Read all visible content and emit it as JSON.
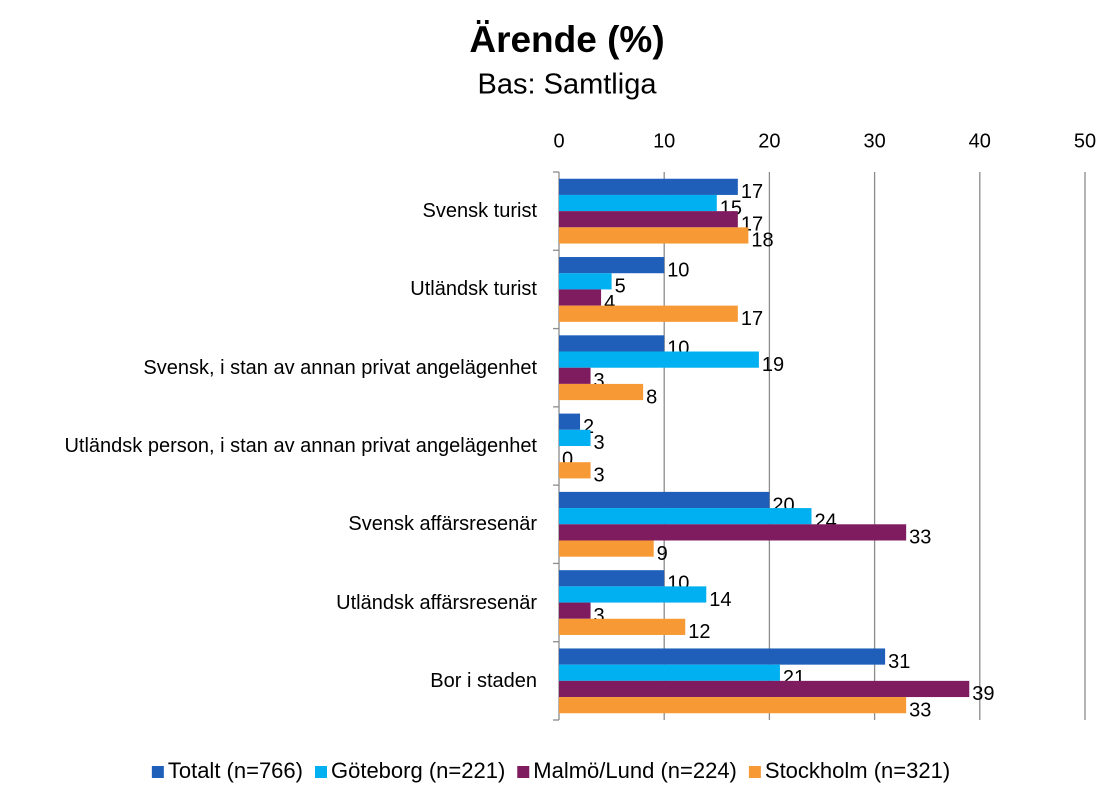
{
  "chart_data": {
    "type": "bar",
    "orientation": "horizontal",
    "title": "Ärende (%)",
    "subtitle": "Bas: Samtliga",
    "categories": [
      "Svensk turist",
      "Utländsk turist",
      "Svensk, i stan av annan privat angelägenhet",
      "Utländsk person, i stan av annan privat angelägenhet",
      "Svensk affärsresenär",
      "Utländsk affärsresenär",
      "Bor i staden"
    ],
    "series": [
      {
        "name": "Totalt (n=766)",
        "color": "#1f5fba",
        "values": [
          17,
          10,
          10,
          2,
          20,
          10,
          31
        ]
      },
      {
        "name": "Göteborg (n=221)",
        "color": "#00b0f0",
        "values": [
          15,
          5,
          19,
          3,
          24,
          14,
          21
        ]
      },
      {
        "name": "Malmö/Lund (n=224)",
        "color": "#7f1b5f",
        "values": [
          17,
          4,
          3,
          0,
          33,
          3,
          39
        ]
      },
      {
        "name": "Stockholm (n=321)",
        "color": "#f79a36",
        "values": [
          18,
          17,
          8,
          3,
          9,
          12,
          33
        ]
      }
    ],
    "xlim": [
      0,
      50
    ],
    "xticks": [
      0,
      10,
      20,
      30,
      40,
      50
    ],
    "grid": true,
    "legend": "bottom"
  }
}
